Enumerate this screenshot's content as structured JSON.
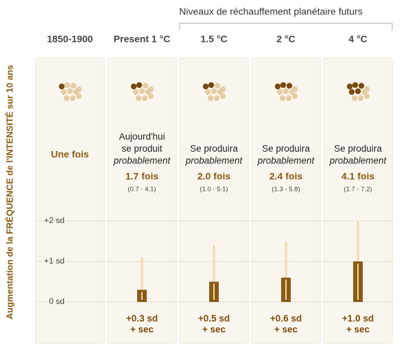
{
  "chart_data": {
    "type": "bar",
    "header": "Niveaux de réchauffement planétaire futurs",
    "y_label": "Augmentation de la FRÉQUENCE de l'INTENSITÉ sur 10 ans",
    "categories": [
      "1850-1900",
      "Present 1 °C",
      "1.5 °C",
      "2 °C",
      "4 °C"
    ],
    "descriptions": [
      [],
      [
        "Aujourd'hui",
        "se produit",
        "probablement"
      ],
      [
        "Se produira",
        "probablement"
      ],
      [
        "Se produira",
        "probablement"
      ],
      [
        "Se produira",
        "probablement"
      ]
    ],
    "frequency": {
      "values": [
        1,
        1.7,
        2.0,
        2.4,
        4.1
      ],
      "value_labels": [
        "Une fois",
        "1.7 fois",
        "2.0 fois",
        "2.4 fois",
        "4.1 fois"
      ],
      "range_labels": [
        null,
        "(0.7 - 4.1)",
        "(1.0 - 5.1)",
        "(1.3 - 5.8)",
        "(1.7 - 7.2)"
      ]
    },
    "series": [
      {
        "name": "intensity",
        "color": "#8b5a14",
        "values": [
          null,
          0.3,
          0.5,
          0.6,
          1.0
        ],
        "upper": [
          null,
          1.1,
          1.4,
          1.5,
          2.0
        ],
        "value_labels": [
          null,
          "+0.3 sd",
          "+0.5 sd",
          "+0.6 sd",
          "+1.0 sd"
        ]
      }
    ],
    "dry_label": "+ sec",
    "ylim": [
      0,
      2
    ],
    "yticks": [
      {
        "value": 0,
        "label": "0 sd"
      },
      {
        "value": 1,
        "label": "+1 sd"
      },
      {
        "value": 2,
        "label": "+2 sd"
      }
    ]
  }
}
